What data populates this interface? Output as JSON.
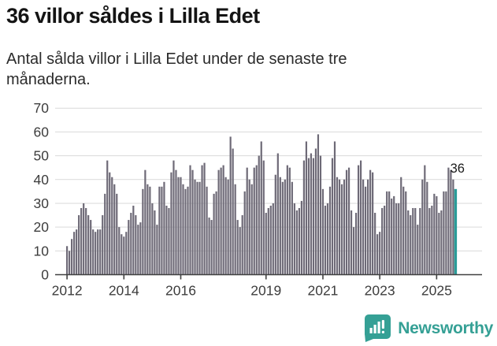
{
  "header": {
    "title": "36 villor såldes i Lilla Edet",
    "subtitle": "Antal sålda villor i Lilla Edet under de senaste tre månaderna."
  },
  "chart_data": {
    "type": "bar",
    "title": "36 villor såldes i Lilla Edet",
    "subtitle": "Antal sålda villor i Lilla Edet under de senaste tre månaderna.",
    "unit": "sålda villor (rullande tre månader)",
    "start_month": "2012-01",
    "end_month": "2025-09",
    "ylim": [
      0,
      70
    ],
    "y_ticks": [
      0,
      10,
      20,
      30,
      40,
      50,
      60,
      70
    ],
    "x_tick_years": [
      2012,
      2014,
      2016,
      2019,
      2021,
      2023,
      2025
    ],
    "x_tick_labels": [
      "2012",
      "2014",
      "2016",
      "2019",
      "2021",
      "2023",
      "2025"
    ],
    "grid": true,
    "legend": "none",
    "bar_color": "#6e6a77",
    "highlight_color": "#2a9c98",
    "axis_color": "#404040",
    "grid_color": "#d9d9d9",
    "label_color": "#3d3d3d",
    "highlight": {
      "index": 164,
      "value": 36,
      "label": "36"
    },
    "values": [
      12,
      10,
      15,
      18,
      19,
      25,
      28,
      30,
      28,
      25,
      23,
      19,
      18,
      19,
      19,
      25,
      34,
      48,
      43,
      41,
      38,
      34,
      20,
      17,
      16,
      18,
      23,
      26,
      29,
      25,
      21,
      22,
      36,
      44,
      38,
      37,
      30,
      27,
      21,
      37,
      37,
      39,
      29,
      28,
      43,
      48,
      44,
      41,
      41,
      38,
      36,
      37,
      46,
      44,
      40,
      39,
      39,
      46,
      47,
      37,
      24,
      23,
      34,
      35,
      44,
      45,
      46,
      41,
      40,
      58,
      53,
      38,
      23,
      20,
      25,
      35,
      45,
      40,
      38,
      45,
      46,
      50,
      56,
      48,
      26,
      28,
      29,
      30,
      42,
      51,
      41,
      39,
      40,
      46,
      45,
      39,
      30,
      27,
      28,
      31,
      48,
      56,
      49,
      51,
      49,
      53,
      59,
      50,
      36,
      29,
      30,
      37,
      49,
      56,
      41,
      40,
      38,
      40,
      44,
      45,
      27,
      20,
      26,
      46,
      48,
      40,
      37,
      40,
      44,
      43,
      26,
      17,
      18,
      28,
      29,
      35,
      35,
      32,
      33,
      30,
      30,
      41,
      37,
      35,
      27,
      25,
      28,
      28,
      21,
      28,
      40,
      46,
      39,
      28,
      29,
      34,
      33,
      26,
      27,
      35,
      35,
      45,
      44,
      40,
      36
    ]
  },
  "footer": {
    "brand": "Newsworthy",
    "brand_color": "#35a095"
  }
}
